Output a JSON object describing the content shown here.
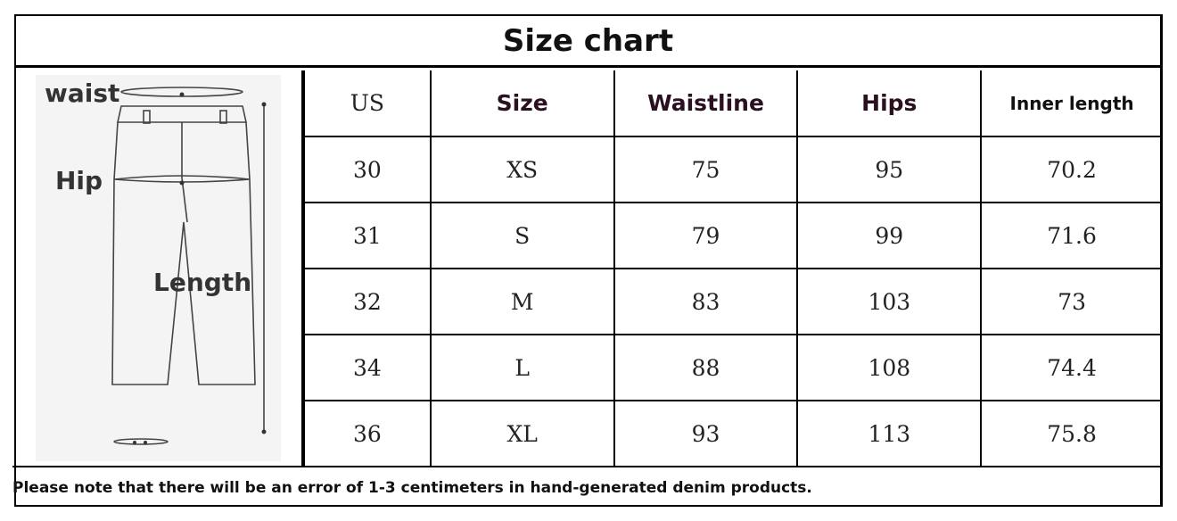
{
  "title": "Size chart",
  "diagram": {
    "waist": "waist",
    "hip": "Hip",
    "length": "Length"
  },
  "headers": [
    "US",
    "Size",
    "Waistline",
    "Hips",
    "Inner length"
  ],
  "rows": [
    [
      "30",
      "XS",
      "75",
      "95",
      "70.2"
    ],
    [
      "31",
      "S",
      "79",
      "99",
      "71.6"
    ],
    [
      "32",
      "M",
      "83",
      "103",
      "73"
    ],
    [
      "34",
      "L",
      "88",
      "108",
      "74.4"
    ],
    [
      "36",
      "XL",
      "93",
      "113",
      "75.8"
    ]
  ],
  "note": "Please note that there will be an error of 1-3 centimeters in hand-generated denim products."
}
